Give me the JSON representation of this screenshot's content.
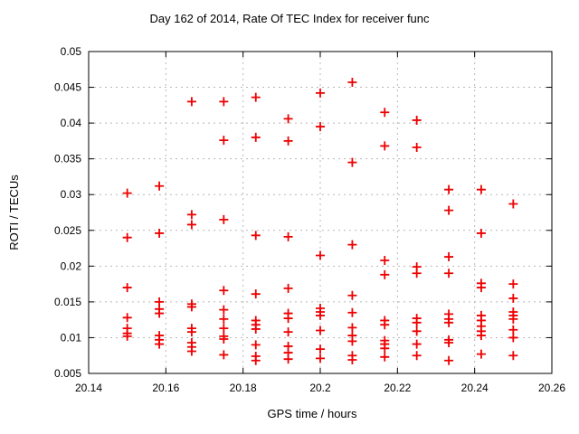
{
  "window": {
    "background": "#ffffff"
  },
  "chart_data": {
    "type": "scatter",
    "title": "Day 162 of 2014, Rate Of TEC Index for receiver func",
    "xlabel": "GPS time / hours",
    "ylabel": "ROTI / TECUs",
    "xlim": [
      20.14,
      20.26
    ],
    "ylim": [
      0.005,
      0.05
    ],
    "xticks": [
      20.14,
      20.16,
      20.18,
      20.2,
      20.22,
      20.24,
      20.26
    ],
    "xtick_labels": [
      "20.14",
      "20.16",
      "20.18",
      "20.2",
      "20.22",
      "20.24",
      "20.26"
    ],
    "yticks": [
      0.005,
      0.01,
      0.015,
      0.02,
      0.025,
      0.03,
      0.035,
      0.04,
      0.045,
      0.05
    ],
    "ytick_labels": [
      "0.005",
      "0.01",
      "0.015",
      "0.02",
      "0.025",
      "0.03",
      "0.035",
      "0.04",
      "0.045",
      "0.05"
    ],
    "grid": true,
    "legend": "none",
    "marker": {
      "shape": "plus",
      "color": "#ee0000",
      "size": 10,
      "stroke_width": 1.8
    },
    "grid_color": "#b8b8b8",
    "border_color": "#000000",
    "series": [
      {
        "name": "ROTI",
        "points": [
          [
            20.15,
            0.0302
          ],
          [
            20.15,
            0.024
          ],
          [
            20.15,
            0.017
          ],
          [
            20.15,
            0.0128
          ],
          [
            20.15,
            0.0113
          ],
          [
            20.15,
            0.0106
          ],
          [
            20.15,
            0.0102
          ],
          [
            20.1583,
            0.0312
          ],
          [
            20.1583,
            0.0246
          ],
          [
            20.1583,
            0.015
          ],
          [
            20.1583,
            0.014
          ],
          [
            20.1583,
            0.0134
          ],
          [
            20.1583,
            0.0103
          ],
          [
            20.1583,
            0.0097
          ],
          [
            20.1583,
            0.0091
          ],
          [
            20.1667,
            0.043
          ],
          [
            20.1667,
            0.0272
          ],
          [
            20.1667,
            0.0258
          ],
          [
            20.1667,
            0.0147
          ],
          [
            20.1667,
            0.0143
          ],
          [
            20.1667,
            0.0113
          ],
          [
            20.1667,
            0.0108
          ],
          [
            20.1667,
            0.0093
          ],
          [
            20.1667,
            0.0087
          ],
          [
            20.1667,
            0.0081
          ],
          [
            20.175,
            0.043
          ],
          [
            20.175,
            0.0376
          ],
          [
            20.175,
            0.0265
          ],
          [
            20.175,
            0.0166
          ],
          [
            20.175,
            0.0139
          ],
          [
            20.175,
            0.0126
          ],
          [
            20.175,
            0.0113
          ],
          [
            20.175,
            0.0102
          ],
          [
            20.175,
            0.0098
          ],
          [
            20.175,
            0.0076
          ],
          [
            20.1833,
            0.0436
          ],
          [
            20.1833,
            0.038
          ],
          [
            20.1833,
            0.0243
          ],
          [
            20.1833,
            0.0161
          ],
          [
            20.1833,
            0.0124
          ],
          [
            20.1833,
            0.0118
          ],
          [
            20.1833,
            0.0112
          ],
          [
            20.1833,
            0.009
          ],
          [
            20.1833,
            0.0074
          ],
          [
            20.1833,
            0.0068
          ],
          [
            20.1917,
            0.0406
          ],
          [
            20.1917,
            0.0375
          ],
          [
            20.1917,
            0.0241
          ],
          [
            20.1917,
            0.0169
          ],
          [
            20.1917,
            0.0134
          ],
          [
            20.1917,
            0.0127
          ],
          [
            20.1917,
            0.0108
          ],
          [
            20.1917,
            0.0088
          ],
          [
            20.1917,
            0.0079
          ],
          [
            20.1917,
            0.007
          ],
          [
            20.2,
            0.0442
          ],
          [
            20.2,
            0.0395
          ],
          [
            20.2,
            0.0215
          ],
          [
            20.2,
            0.0141
          ],
          [
            20.2,
            0.0136
          ],
          [
            20.2,
            0.0131
          ],
          [
            20.2,
            0.011
          ],
          [
            20.2,
            0.0084
          ],
          [
            20.2,
            0.0071
          ],
          [
            20.2083,
            0.0457
          ],
          [
            20.2083,
            0.0345
          ],
          [
            20.2083,
            0.023
          ],
          [
            20.2083,
            0.0159
          ],
          [
            20.2083,
            0.0135
          ],
          [
            20.2083,
            0.0114
          ],
          [
            20.2083,
            0.0103
          ],
          [
            20.2083,
            0.0095
          ],
          [
            20.2083,
            0.0075
          ],
          [
            20.2083,
            0.0069
          ],
          [
            20.2167,
            0.0415
          ],
          [
            20.2167,
            0.0368
          ],
          [
            20.2167,
            0.0208
          ],
          [
            20.2167,
            0.0188
          ],
          [
            20.2167,
            0.0124
          ],
          [
            20.2167,
            0.0118
          ],
          [
            20.2167,
            0.0096
          ],
          [
            20.2167,
            0.0091
          ],
          [
            20.2167,
            0.0085
          ],
          [
            20.2167,
            0.0073
          ],
          [
            20.225,
            0.0404
          ],
          [
            20.225,
            0.0366
          ],
          [
            20.225,
            0.0199
          ],
          [
            20.225,
            0.019
          ],
          [
            20.225,
            0.0127
          ],
          [
            20.225,
            0.0121
          ],
          [
            20.225,
            0.0109
          ],
          [
            20.225,
            0.0091
          ],
          [
            20.225,
            0.0075
          ],
          [
            20.2333,
            0.0307
          ],
          [
            20.2333,
            0.0278
          ],
          [
            20.2333,
            0.0213
          ],
          [
            20.2333,
            0.019
          ],
          [
            20.2333,
            0.0133
          ],
          [
            20.2333,
            0.0126
          ],
          [
            20.2333,
            0.0121
          ],
          [
            20.2333,
            0.0097
          ],
          [
            20.2333,
            0.0093
          ],
          [
            20.2333,
            0.0068
          ],
          [
            20.2417,
            0.0307
          ],
          [
            20.2417,
            0.0246
          ],
          [
            20.2417,
            0.0176
          ],
          [
            20.2417,
            0.017
          ],
          [
            20.2417,
            0.0131
          ],
          [
            20.2417,
            0.0124
          ],
          [
            20.2417,
            0.0116
          ],
          [
            20.2417,
            0.0109
          ],
          [
            20.2417,
            0.0103
          ],
          [
            20.2417,
            0.0077
          ],
          [
            20.25,
            0.0287
          ],
          [
            20.25,
            0.0175
          ],
          [
            20.25,
            0.0155
          ],
          [
            20.25,
            0.0136
          ],
          [
            20.25,
            0.0131
          ],
          [
            20.25,
            0.0126
          ],
          [
            20.25,
            0.0111
          ],
          [
            20.25,
            0.01
          ],
          [
            20.25,
            0.0075
          ]
        ]
      }
    ]
  }
}
